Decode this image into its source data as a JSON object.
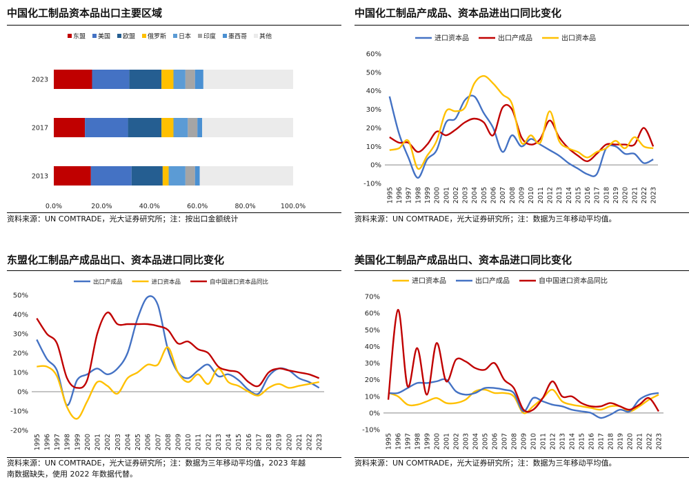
{
  "panels": {
    "p1": {
      "title": "中国化工制品资本品出口主要区域",
      "source": "资料来源：UN COMTRADE，光大证券研究所；注：按出口金额统计"
    },
    "p2": {
      "title": "中国化工制品产成品、资本品进出口同比变化",
      "source": "资料来源：UN COMTRADE，光大证券研究所；注：数据为三年移动平均值。"
    },
    "p3": {
      "title": "东盟化工制品产成品出口、资本品进口同比变化",
      "source_line1": "资料来源：UN COMTRADE，光大证券研究所；注：数据为三年移动平均值，2023 年越",
      "source_line2": "南数据缺失，使用 2022 年数据代替。"
    },
    "p4": {
      "title": "美国化工制品产成品出口、资本品进口同比变化",
      "source": "资料来源：UN COMTRADE，光大证券研究所；注：数据为三年移动平均值。"
    }
  },
  "chart_data": [
    {
      "id": "p1",
      "type": "bar",
      "orientation": "horizontal",
      "stacked": true,
      "categories": [
        "2023",
        "2017",
        "2013"
      ],
      "series": [
        {
          "name": "东盟",
          "color": "#c00000",
          "values": [
            16,
            13,
            15.5
          ]
        },
        {
          "name": "美国",
          "color": "#4472c4",
          "values": [
            15.5,
            18,
            17
          ]
        },
        {
          "name": "欧盟",
          "color": "#255e91",
          "values": [
            13.5,
            14,
            13
          ]
        },
        {
          "name": "俄罗斯",
          "color": "#ffc000",
          "values": [
            5,
            5,
            2.5
          ]
        },
        {
          "name": "日本",
          "color": "#5b9bd5",
          "values": [
            5,
            6,
            7
          ]
        },
        {
          "name": "印度",
          "color": "#a5a5a5",
          "values": [
            4,
            4,
            4
          ]
        },
        {
          "name": "墨西哥",
          "color": "#4a90d2",
          "values": [
            3.5,
            2,
            2
          ]
        },
        {
          "name": "其他",
          "color": "#ebebeb",
          "values": [
            37.5,
            38,
            39
          ]
        }
      ],
      "xlim": [
        0,
        100
      ],
      "xticks": [
        "0.0%",
        "20.0%",
        "40.0%",
        "60.0%",
        "80.0%",
        "100.0%"
      ],
      "legend": "top"
    },
    {
      "id": "p2",
      "type": "line",
      "x": [
        "1995",
        "1996",
        "1997",
        "1998",
        "1999",
        "2000",
        "2001",
        "2002",
        "2003",
        "2004",
        "2005",
        "2006",
        "2007",
        "2008",
        "2009",
        "2010",
        "2011",
        "2012",
        "2013",
        "2014",
        "2015",
        "2016",
        "2017",
        "2018",
        "2019",
        "2020",
        "2021",
        "2022",
        "2023"
      ],
      "ylim": [
        -10,
        60
      ],
      "yticks": [
        -10,
        0,
        10,
        20,
        30,
        40,
        50,
        60
      ],
      "legend": "top",
      "series": [
        {
          "name": "进口资本品",
          "color": "#4472c4",
          "values": [
            37,
            17,
            4,
            -7,
            3,
            8,
            23,
            25,
            35,
            37,
            28,
            20,
            7,
            16,
            10,
            14,
            11,
            8,
            5,
            1,
            -2,
            -5,
            -5,
            9,
            10,
            6,
            6,
            1,
            3
          ]
        },
        {
          "name": "出口产成品",
          "color": "#c00000",
          "values": [
            15,
            12,
            12,
            7,
            11,
            18,
            16,
            19,
            23,
            25,
            23,
            16,
            31,
            30,
            15,
            11,
            14,
            24,
            15,
            9,
            5,
            2,
            6,
            11,
            11,
            11,
            11,
            20,
            10
          ]
        },
        {
          "name": "出口资本品",
          "color": "#ffc000",
          "values": [
            8,
            9,
            13,
            -2,
            5,
            13,
            29,
            29,
            31,
            44,
            48,
            44,
            38,
            33,
            12,
            16,
            12,
            29,
            13,
            9,
            7,
            4,
            7,
            9,
            13,
            9,
            15,
            10,
            9
          ]
        }
      ]
    },
    {
      "id": "p3",
      "type": "line",
      "x": [
        "1995",
        "1996",
        "1997",
        "1998",
        "1999",
        "2000",
        "2001",
        "2002",
        "2003",
        "2004",
        "2005",
        "2006",
        "2007",
        "2008",
        "2009",
        "2010",
        "2011",
        "2012",
        "2013",
        "2014",
        "2015",
        "2016",
        "2017",
        "2018",
        "2019",
        "2020",
        "2021",
        "2022",
        "2023"
      ],
      "ylim": [
        -20,
        50
      ],
      "yticks": [
        -20,
        -10,
        0,
        10,
        20,
        30,
        40,
        50
      ],
      "legend": "top",
      "series": [
        {
          "name": "出口产成品",
          "color": "#4472c4",
          "values": [
            27,
            17,
            11,
            -7,
            6,
            9,
            12,
            9,
            12,
            20,
            38,
            49,
            45,
            22,
            10,
            7,
            11,
            14,
            8,
            9,
            6,
            1,
            -1,
            8,
            12,
            11,
            7,
            5,
            2
          ]
        },
        {
          "name": "进口资本品",
          "color": "#ffc000",
          "values": [
            13,
            13,
            8,
            -8,
            -14,
            -5,
            5,
            3,
            -1,
            7,
            10,
            14,
            14,
            23,
            10,
            5,
            9,
            4,
            12,
            5,
            3,
            0,
            -2,
            2,
            4,
            2,
            3,
            4,
            5
          ]
        },
        {
          "name": "自中国进口资本品同比",
          "color": "#c00000",
          "values": [
            38,
            30,
            25,
            7,
            2,
            6,
            30,
            41,
            35,
            35,
            35,
            35,
            34,
            32,
            25,
            26,
            22,
            20,
            13,
            11,
            10,
            5,
            3,
            10,
            12,
            11,
            10,
            9,
            7
          ]
        }
      ]
    },
    {
      "id": "p4",
      "type": "line",
      "x": [
        "1995",
        "1996",
        "1997",
        "1998",
        "1999",
        "2000",
        "2001",
        "2002",
        "2003",
        "2004",
        "2005",
        "2006",
        "2007",
        "2008",
        "2009",
        "2010",
        "2011",
        "2012",
        "2013",
        "2014",
        "2015",
        "2016",
        "2017",
        "2018",
        "2019",
        "2020",
        "2021",
        "2022",
        "2023"
      ],
      "ylim": [
        -10,
        70
      ],
      "yticks": [
        -10,
        0,
        10,
        20,
        30,
        40,
        50,
        60,
        70
      ],
      "legend": "top",
      "series": [
        {
          "name": "进口资本品",
          "color": "#ffc000",
          "values": [
            12,
            10,
            5,
            5,
            7,
            9,
            6,
            6,
            8,
            13,
            14,
            12,
            12,
            10,
            0,
            4,
            9,
            14,
            7,
            5,
            4,
            3,
            2,
            4,
            4,
            1,
            4,
            8,
            11
          ]
        },
        {
          "name": "出口产成品",
          "color": "#4472c4",
          "values": [
            12,
            12,
            15,
            18,
            18,
            19,
            20,
            13,
            11,
            12,
            15,
            15,
            14,
            12,
            1,
            9,
            7,
            5,
            4,
            2,
            1,
            0,
            -3,
            -1,
            2,
            1,
            8,
            11,
            12
          ]
        },
        {
          "name": "自中国进口资本品同比",
          "color": "#c00000",
          "values": [
            8,
            62,
            16,
            39,
            11,
            42,
            19,
            32,
            31,
            27,
            26,
            30,
            20,
            15,
            2,
            2,
            9,
            19,
            10,
            10,
            6,
            4,
            4,
            6,
            4,
            2,
            5,
            9,
            1
          ]
        }
      ]
    }
  ]
}
